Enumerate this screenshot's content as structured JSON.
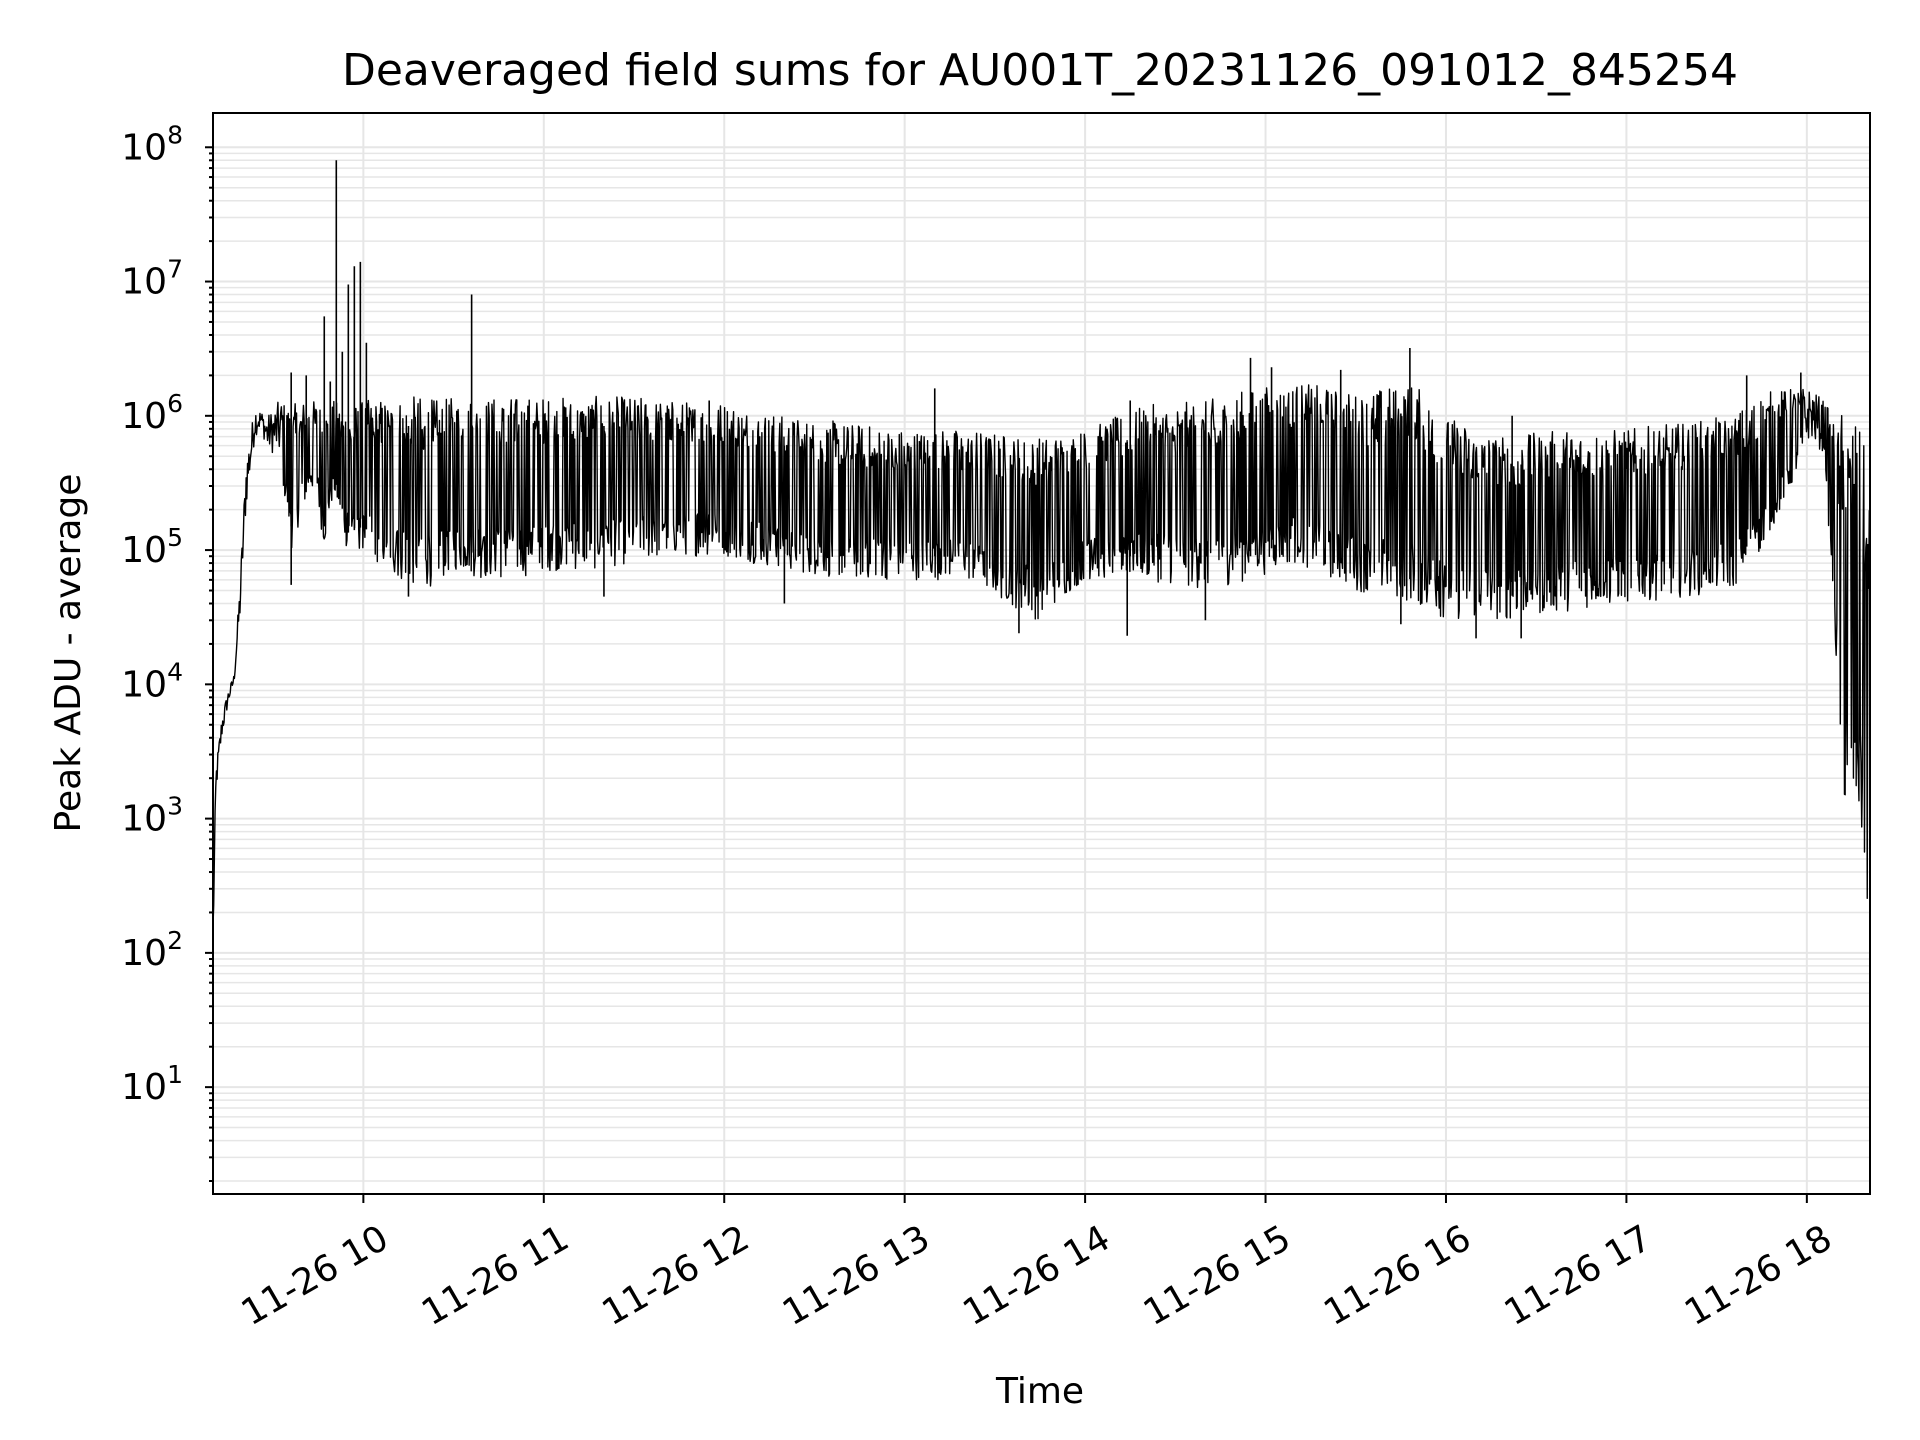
{
  "chart_data": {
    "type": "line",
    "title": "Deaveraged field sums for AU001T_20231126_091012_845254",
    "xlabel": "Time",
    "ylabel": "Peak ADU - average",
    "yscale": "log",
    "ylim": [
      1.6,
      180000000.0
    ],
    "xlim": [
      "2023-11-26T09:10",
      "2023-11-26T18:21"
    ],
    "grid": true,
    "line_color": "#000000",
    "x_ticks": [
      "11-26 10",
      "11-26 11",
      "11-26 12",
      "11-26 13",
      "11-26 14",
      "11-26 15",
      "11-26 16",
      "11-26 17",
      "11-26 18"
    ],
    "y_ticks": [
      {
        "base": "10",
        "exp": "1",
        "value": 10
      },
      {
        "base": "10",
        "exp": "2",
        "value": 100
      },
      {
        "base": "10",
        "exp": "3",
        "value": 1000
      },
      {
        "base": "10",
        "exp": "4",
        "value": 10000
      },
      {
        "base": "10",
        "exp": "5",
        "value": 100000
      },
      {
        "base": "10",
        "exp": "6",
        "value": 1000000
      },
      {
        "base": "10",
        "exp": "7",
        "value": 10000000
      },
      {
        "base": "10",
        "exp": "8",
        "value": 100000000
      }
    ],
    "series": [
      {
        "x": [
          "2023-11-26T09:10",
          "2023-11-26T09:11",
          "2023-11-26T09:13",
          "2023-11-26T09:15",
          "2023-11-26T09:17",
          "2023-11-26T09:19",
          "2023-11-26T09:21",
          "2023-11-26T09:24",
          "2023-11-26T09:26",
          "2023-11-26T09:28",
          "2023-11-26T09:32",
          "2023-11-26T09:36",
          "2023-11-26T09:40",
          "2023-11-26T09:44",
          "2023-11-26T09:47",
          "2023-11-26T09:50",
          "2023-11-26T09:55",
          "2023-11-26T10:00",
          "2023-11-26T10:10",
          "2023-11-26T10:20",
          "2023-11-26T10:26",
          "2023-11-26T10:30",
          "2023-11-26T10:40",
          "2023-11-26T10:50",
          "2023-11-26T11:00",
          "2023-11-26T11:15",
          "2023-11-26T11:30",
          "2023-11-26T11:45",
          "2023-11-26T12:00",
          "2023-11-26T12:20",
          "2023-11-26T12:40",
          "2023-11-26T13:00",
          "2023-11-26T13:20",
          "2023-11-26T13:44",
          "2023-11-26T14:00",
          "2023-11-26T14:20",
          "2023-11-26T14:40",
          "2023-11-26T14:55",
          "2023-11-26T15:10",
          "2023-11-26T15:30",
          "2023-11-26T15:49",
          "2023-11-26T16:00",
          "2023-11-26T16:20",
          "2023-11-26T16:40",
          "2023-11-26T17:00",
          "2023-11-26T17:20",
          "2023-11-26T17:35",
          "2023-11-26T17:45",
          "2023-11-26T17:55",
          "2023-11-26T18:01",
          "2023-11-26T18:06",
          "2023-11-26T18:10",
          "2023-11-26T18:12",
          "2023-11-26T18:14",
          "2023-11-26T18:17",
          "2023-11-26T18:19",
          "2023-11-26T18:21"
        ],
        "low": [
          100,
          1500,
          4000,
          7000,
          10000,
          30000,
          200000,
          700000,
          800000,
          550000,
          500000,
          100000,
          200000,
          300000,
          100000,
          250000,
          90000,
          100000,
          60000,
          50000,
          60000,
          70000,
          60000,
          60000,
          70000,
          70000,
          80000,
          90000,
          90000,
          70000,
          60000,
          60000,
          60000,
          30000,
          60000,
          60000,
          50000,
          60000,
          80000,
          50000,
          40000,
          30000,
          30000,
          35000,
          40000,
          45000,
          50000,
          100000,
          300000,
          700000,
          500000,
          10000,
          1200,
          900,
          800,
          400,
          100
        ],
        "high": [
          200,
          2500,
          6000,
          9000,
          12000,
          60000,
          500000,
          1200000,
          1100000,
          1000000,
          1300000,
          1200000,
          1300000,
          1300000,
          1200000,
          1300000,
          1200000,
          1300000,
          1400000,
          1400000,
          1300000,
          1400000,
          1400000,
          1400000,
          1400000,
          1400000,
          1400000,
          1300000,
          1300000,
          1000000,
          900000,
          800000,
          800000,
          700000,
          800000,
          1200000,
          1300000,
          1600000,
          1800000,
          1500000,
          1800000,
          1000000,
          700000,
          800000,
          800000,
          900000,
          1000000,
          1500000,
          1600000,
          1600000,
          1300000,
          800000,
          1200000,
          1100000,
          900000,
          600000,
          300000
        ]
      }
    ],
    "spikes": [
      {
        "x": "2023-11-26T09:36",
        "y": 2100000
      },
      {
        "x": "2023-11-26T09:41",
        "y": 2000000
      },
      {
        "x": "2023-11-26T09:47",
        "y": 5500000
      },
      {
        "x": "2023-11-26T09:49",
        "y": 1800000
      },
      {
        "x": "2023-11-26T09:51",
        "y": 80000000
      },
      {
        "x": "2023-11-26T09:53",
        "y": 3000000
      },
      {
        "x": "2023-11-26T09:55",
        "y": 9500000
      },
      {
        "x": "2023-11-26T09:57",
        "y": 13000000
      },
      {
        "x": "2023-11-26T09:59",
        "y": 14000000
      },
      {
        "x": "2023-11-26T10:01",
        "y": 3500000
      },
      {
        "x": "2023-11-26T10:36",
        "y": 8000000
      },
      {
        "x": "2023-11-26T11:55",
        "y": 1300000
      },
      {
        "x": "2023-11-26T13:10",
        "y": 1600000
      },
      {
        "x": "2023-11-26T14:15",
        "y": 1300000
      },
      {
        "x": "2023-11-26T14:55",
        "y": 2700000
      },
      {
        "x": "2023-11-26T15:02",
        "y": 2300000
      },
      {
        "x": "2023-11-26T15:25",
        "y": 2200000
      },
      {
        "x": "2023-11-26T15:48",
        "y": 3200000
      },
      {
        "x": "2023-11-26T16:22",
        "y": 1000000
      },
      {
        "x": "2023-11-26T17:40",
        "y": 2000000
      },
      {
        "x": "2023-11-26T17:58",
        "y": 2100000
      }
    ],
    "dips": [
      {
        "x": "2023-11-26T09:36",
        "y": 55000
      },
      {
        "x": "2023-11-26T10:15",
        "y": 45000
      },
      {
        "x": "2023-11-26T11:20",
        "y": 45000
      },
      {
        "x": "2023-11-26T12:20",
        "y": 40000
      },
      {
        "x": "2023-11-26T13:38",
        "y": 24000
      },
      {
        "x": "2023-11-26T14:14",
        "y": 23000
      },
      {
        "x": "2023-11-26T14:40",
        "y": 30000
      },
      {
        "x": "2023-11-26T15:45",
        "y": 28000
      },
      {
        "x": "2023-11-26T16:10",
        "y": 22000
      },
      {
        "x": "2023-11-26T16:25",
        "y": 22000
      }
    ]
  }
}
